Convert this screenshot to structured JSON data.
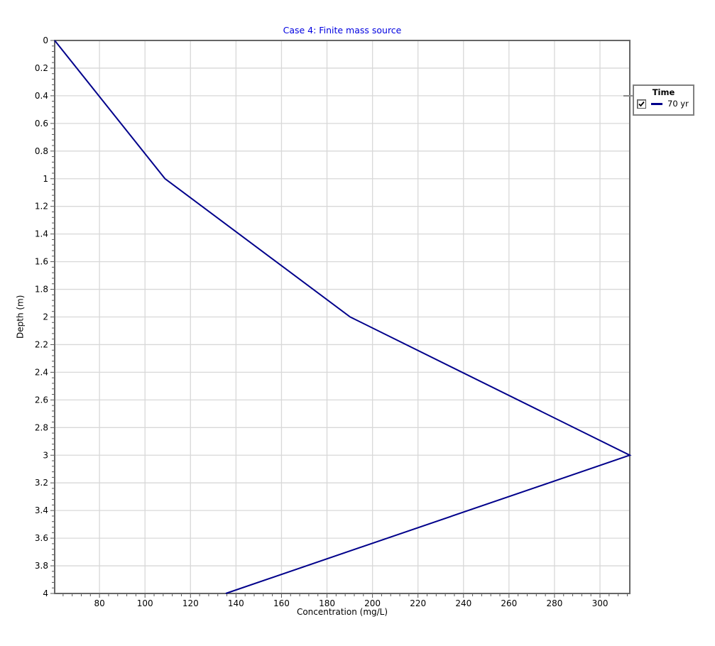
{
  "figure": {
    "title": "Case 4: Finite mass source",
    "title_color": "#0000e0"
  },
  "chart_data": {
    "type": "line",
    "title": "Case 4: Finite mass source",
    "xlabel": "Concentration (mg/L)",
    "ylabel": "Depth (m)",
    "xlim": [
      60.3,
      313.1
    ],
    "ylim": [
      0,
      4
    ],
    "y_inverted_depth_axis": true,
    "grid": true,
    "x_ticks": [
      80,
      100,
      120,
      140,
      160,
      180,
      200,
      220,
      240,
      260,
      280,
      300
    ],
    "x_minor_step": 4,
    "y_ticks": [
      0,
      0.2,
      0.4,
      0.6,
      0.8,
      1,
      1.2,
      1.4,
      1.6,
      1.8,
      2,
      2.2,
      2.4,
      2.6,
      2.8,
      3,
      3.2,
      3.4,
      3.6,
      3.8,
      4
    ],
    "y_minor_step": 0.04,
    "legend_position": "right",
    "colors": {
      "grid": "#d8d8d8",
      "frame": "#666666",
      "tick": "#555555",
      "text": "#000000"
    },
    "series": [
      {
        "name": "70 yr",
        "color": "#00008b",
        "visible": true,
        "points": [
          {
            "concentration": 60.3,
            "depth": 0
          },
          {
            "concentration": 108.8,
            "depth": 1
          },
          {
            "concentration": 190.2,
            "depth": 2
          },
          {
            "concentration": 313.1,
            "depth": 3
          },
          {
            "concentration": 135.5,
            "depth": 4
          }
        ]
      }
    ]
  },
  "legend": {
    "title": "Time",
    "items": [
      {
        "label": "70 yr",
        "checked": true,
        "color": "#00008b"
      }
    ]
  }
}
